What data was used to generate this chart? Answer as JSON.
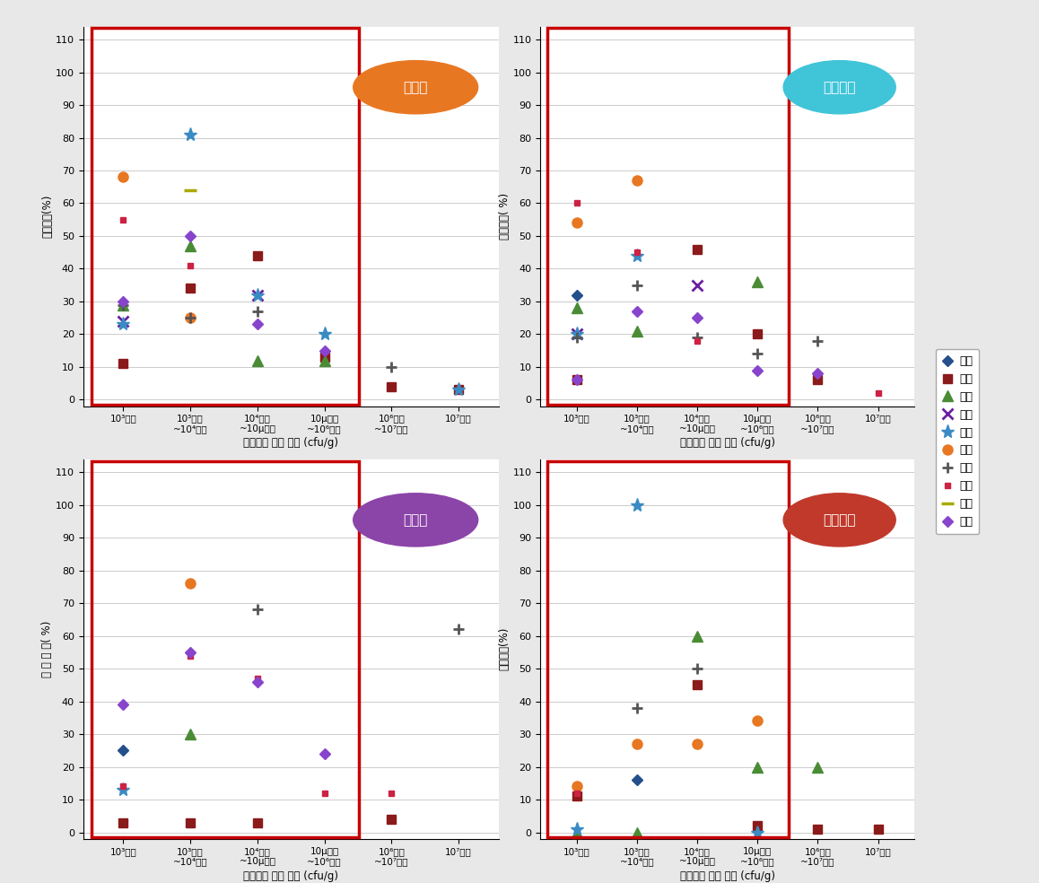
{
  "xlabel": "모니터링 검사 결과 (cfu/g)",
  "ylim": [
    0,
    110
  ],
  "yticks": [
    0,
    10,
    20,
    30,
    40,
    50,
    60,
    70,
    80,
    90,
    100,
    110
  ],
  "x_positions": [
    1,
    2,
    3,
    4,
    5,
    6
  ],
  "cat_labels": [
    "10³이하",
    "10³초과\n~10⁴이하",
    "10⁴초과\n~10µ이하",
    "10µ초과\n~10⁶이하",
    "10⁶초과\n~10⁷이하",
    "10⁷초과"
  ],
  "titles": {
    "beef": "소고기",
    "pork": "돼지고기",
    "chicken": "닭고기",
    "duck": "오리고기"
  },
  "title_bg_colors": {
    "beef": "#e87722",
    "pork": "#40c4d8",
    "chicken": "#8b44a8",
    "duck": "#c0392b"
  },
  "ylabel_texts": {
    "beef": "상대비율(%)",
    "pork": "상대비율( %)",
    "chicken": "상 대 비 율( %)",
    "duck": "상대비율(%)"
  },
  "regions": [
    "강원",
    "경기",
    "경남",
    "광주",
    "대구",
    "부산",
    "서울",
    "인첸",
    "전남",
    "전북"
  ],
  "region_styles": {
    "강원": {
      "color": "#244f8b",
      "marker": "D",
      "ms": 6,
      "mew": 1,
      "mfc": "#244f8b"
    },
    "경기": {
      "color": "#8b1a1a",
      "marker": "s",
      "ms": 7,
      "mew": 1,
      "mfc": "#8b1a1a"
    },
    "경남": {
      "color": "#4a8c35",
      "marker": "^",
      "ms": 8,
      "mew": 1,
      "mfc": "#4a8c35"
    },
    "광주": {
      "color": "#6a1fa0",
      "marker": "x",
      "ms": 8,
      "mew": 2,
      "mfc": "#6a1fa0"
    },
    "대구": {
      "color": "#3a8bc4",
      "marker": "*",
      "ms": 11,
      "mew": 1,
      "mfc": "#3a8bc4"
    },
    "부산": {
      "color": "#e87722",
      "marker": "o",
      "ms": 8,
      "mew": 1,
      "mfc": "#e87722"
    },
    "서울": {
      "color": "#555555",
      "marker": "+",
      "ms": 9,
      "mew": 2,
      "mfc": "#555555"
    },
    "인첸": {
      "color": "#cc2244",
      "marker": "s",
      "ms": 5,
      "mew": 1,
      "mfc": "#cc2244"
    },
    "전남": {
      "color": "#aaaa00",
      "marker": "_",
      "ms": 10,
      "mew": 2.5,
      "mfc": "#aaaa00"
    },
    "전북": {
      "color": "#8844cc",
      "marker": "D",
      "ms": 6,
      "mew": 1,
      "mfc": "#8844cc"
    }
  },
  "beef": {
    "강원": [
      null,
      null,
      null,
      null,
      null,
      null
    ],
    "경기": [
      11,
      34,
      44,
      13,
      4,
      3
    ],
    "경남": [
      29,
      47,
      12,
      12,
      null,
      null
    ],
    "광주": [
      24,
      null,
      32,
      null,
      null,
      null
    ],
    "대구": [
      23,
      81,
      32,
      20,
      null,
      3
    ],
    "부산": [
      68,
      25,
      null,
      null,
      null,
      null
    ],
    "서울": [
      29,
      25,
      27,
      null,
      10,
      null
    ],
    "인첸": [
      55,
      41,
      23,
      null,
      null,
      null
    ],
    "전남": [
      null,
      64,
      null,
      null,
      null,
      null
    ],
    "전북": [
      30,
      50,
      23,
      15,
      null,
      null
    ]
  },
  "pork": {
    "강원": [
      32,
      null,
      null,
      null,
      null,
      null
    ],
    "경기": [
      6,
      null,
      46,
      20,
      6,
      null
    ],
    "경남": [
      28,
      21,
      null,
      36,
      null,
      null
    ],
    "광주": [
      20,
      null,
      35,
      null,
      null,
      null
    ],
    "대구": [
      20,
      44,
      null,
      null,
      null,
      null
    ],
    "부산": [
      54,
      67,
      null,
      null,
      null,
      null
    ],
    "서울": [
      19,
      35,
      19,
      14,
      18,
      null
    ],
    "인첸": [
      60,
      45,
      18,
      9,
      null,
      2
    ],
    "전남": [
      null,
      null,
      null,
      null,
      null,
      null
    ],
    "전북": [
      6,
      27,
      25,
      9,
      8,
      null
    ]
  },
  "chicken": {
    "강원": [
      25,
      null,
      null,
      null,
      null,
      null
    ],
    "경기": [
      3,
      3,
      3,
      null,
      4,
      null
    ],
    "경남": [
      null,
      30,
      null,
      null,
      null,
      null
    ],
    "광주": [
      null,
      null,
      null,
      null,
      null,
      null
    ],
    "대구": [
      13,
      null,
      null,
      null,
      null,
      null
    ],
    "부산": [
      null,
      76,
      null,
      null,
      null,
      null
    ],
    "서울": [
      null,
      null,
      68,
      null,
      null,
      62
    ],
    "인첸": [
      14,
      54,
      47,
      12,
      12,
      null
    ],
    "전남": [
      null,
      null,
      null,
      null,
      null,
      null
    ],
    "전북": [
      39,
      55,
      46,
      24,
      null,
      null
    ]
  },
  "duck": {
    "강원": [
      null,
      16,
      null,
      null,
      null,
      null
    ],
    "경기": [
      11,
      null,
      45,
      2,
      1,
      1
    ],
    "경남": [
      0,
      0,
      60,
      20,
      20,
      null
    ],
    "광주": [
      null,
      null,
      null,
      null,
      null,
      null
    ],
    "대구": [
      1,
      100,
      null,
      0,
      null,
      null
    ],
    "부산": [
      14,
      27,
      27,
      34,
      null,
      null
    ],
    "서울": [
      null,
      38,
      50,
      null,
      null,
      null
    ],
    "인첸": [
      12,
      null,
      null,
      null,
      null,
      null
    ],
    "전남": [
      null,
      null,
      null,
      null,
      null,
      null
    ],
    "전북": [
      null,
      null,
      null,
      null,
      null,
      null
    ]
  }
}
